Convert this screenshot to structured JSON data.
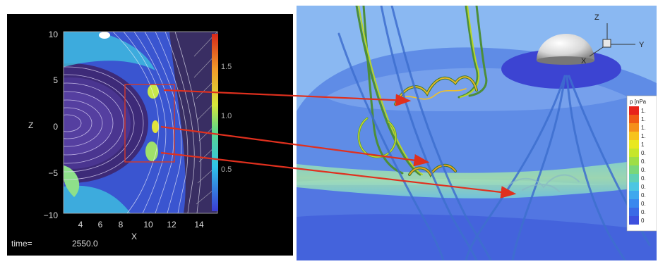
{
  "left_plot": {
    "xlabel": "X",
    "ylabel": "Z",
    "xticks": [
      "4",
      "6",
      "8",
      "10",
      "12",
      "14"
    ],
    "yticks": [
      "10",
      "5",
      "0",
      "−5",
      "−10"
    ],
    "colorbar_ticks": [
      "1.5",
      "1.0",
      "0.5"
    ],
    "time_label": "time=",
    "time_value": "2550.0"
  },
  "right_plot": {
    "legend_title": "p [nPa",
    "legend_values": [
      "1.",
      "1.",
      "1.",
      "1.",
      "1",
      "0.",
      "0.",
      "0.",
      "0.",
      "0.",
      "0.",
      "0.",
      "0.",
      "0"
    ],
    "legend_colors": [
      "#e8231a",
      "#f05a14",
      "#f5901a",
      "#f7c31c",
      "#e9e81f",
      "#c6e62a",
      "#9ede46",
      "#79d77a",
      "#5fd0b4",
      "#4cc6e2",
      "#3fa8ee",
      "#3a88ee",
      "#3b6ae6",
      "#3d50de"
    ],
    "axes": {
      "z": "Z",
      "y": "Y",
      "x": "X"
    }
  },
  "colors": {
    "arrow": "#e0301e",
    "plot_background": "#000000",
    "sheath_blue": "#3c5ad6"
  }
}
